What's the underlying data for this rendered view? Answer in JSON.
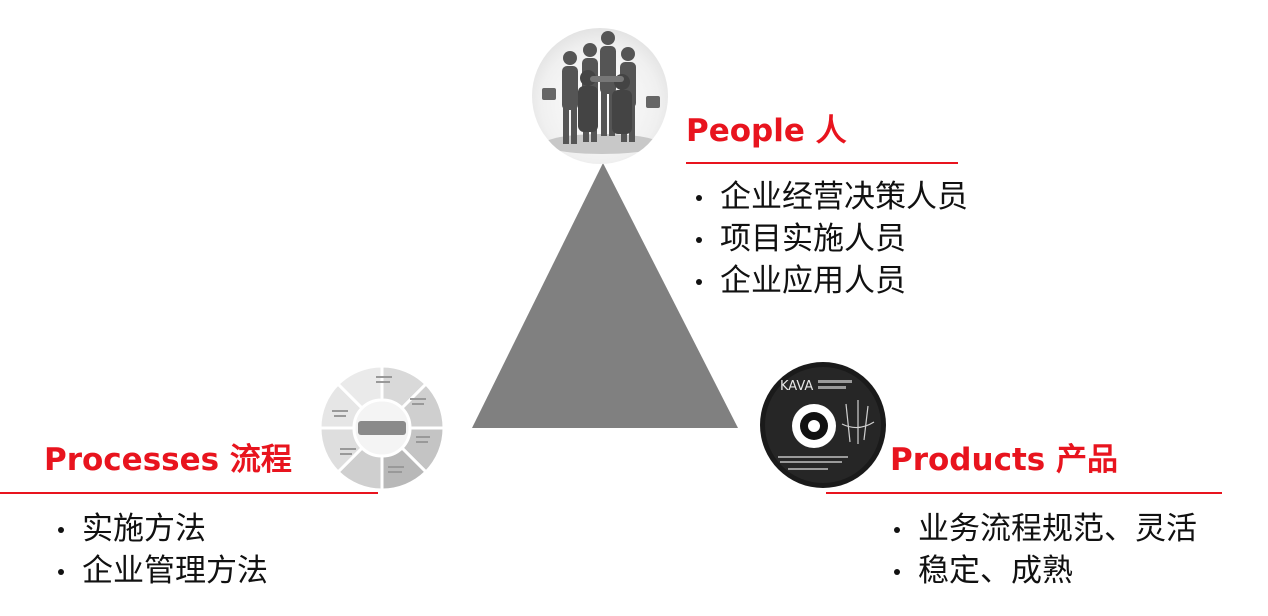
{
  "colors": {
    "accent": "#e8141e",
    "triangle": "#808080",
    "text": "#111111"
  },
  "people": {
    "heading": "People 人",
    "items": [
      "企业经营决策人员",
      "项目实施人员",
      "企业应用人员"
    ]
  },
  "processes": {
    "heading": "Processes 流程",
    "items": [
      "实施方法",
      "企业管理方法"
    ]
  },
  "products": {
    "heading": "Products 产品",
    "items": [
      "业务流程规范、灵活",
      "稳定、成熟"
    ],
    "disc_brand": "KAVA"
  },
  "icons": {
    "people": "business-team-image",
    "processes": "process-cycle-image",
    "products": "product-disc-image"
  }
}
